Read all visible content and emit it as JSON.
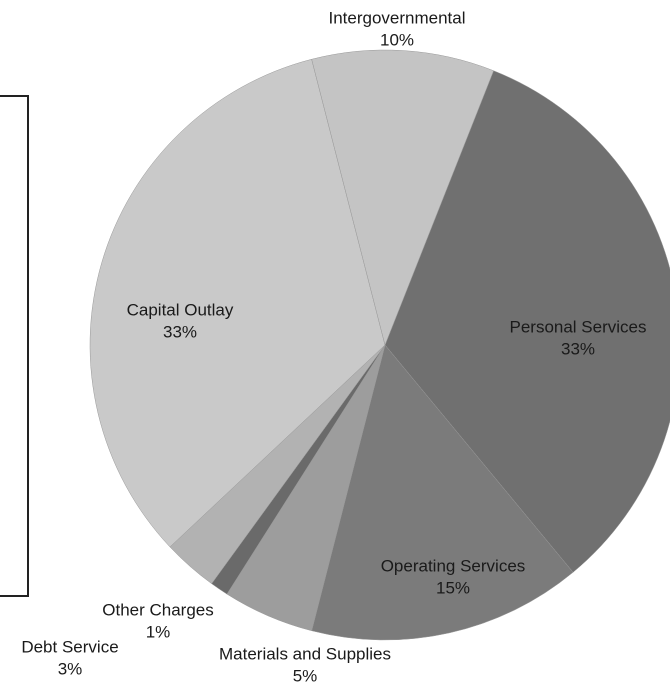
{
  "chart_data": {
    "type": "pie",
    "categories": [
      "Personal Services",
      "Operating Services",
      "Materials and Supplies",
      "Other Charges",
      "Debt Service",
      "Capital Outlay",
      "Intergovernmental"
    ],
    "values": [
      33,
      15,
      5,
      1,
      3,
      33,
      10
    ],
    "value_labels": [
      "33%",
      "15%",
      "5%",
      "1%",
      "3%",
      "33%",
      "10%"
    ],
    "colors": [
      "#707070",
      "#7b7b7b",
      "#9d9d9d",
      "#6a6a6a",
      "#b2b2b2",
      "#c9c9c9",
      "#c4c4c4"
    ]
  }
}
